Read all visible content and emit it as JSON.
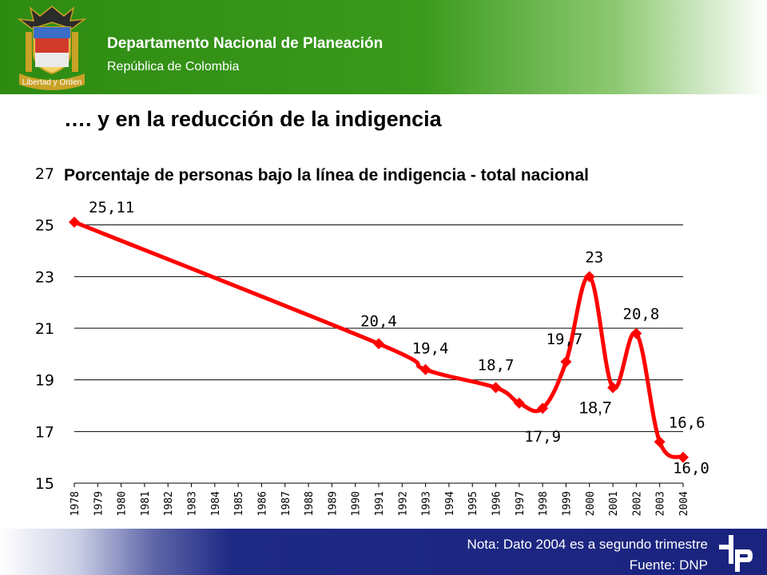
{
  "header": {
    "org_name": "Departamento Nacional de Planeación",
    "country": "República de Colombia",
    "crest_motto": "Libertad y Orden",
    "colors": {
      "green": "#2e8b12",
      "gold": "#c9a227"
    }
  },
  "slide_title": "…. y en la reducción de la indigencia",
  "chart_data": {
    "type": "line",
    "title": "Porcentaje de personas bajo la línea de indigencia - total nacional",
    "categories": [
      "1978",
      "1979",
      "1980",
      "1981",
      "1982",
      "1983",
      "1984",
      "1985",
      "1986",
      "1987",
      "1988",
      "1989",
      "1990",
      "1991",
      "1992",
      "1993",
      "1994",
      "1995",
      "1996",
      "1997",
      "1998",
      "1999",
      "2000",
      "2001",
      "2002",
      "2003",
      "2004"
    ],
    "points": [
      {
        "x": "1978",
        "y": 25.11,
        "label": "25,11"
      },
      {
        "x": "1991",
        "y": 20.4,
        "label": "20,4"
      },
      {
        "x": "1993",
        "y": 19.4,
        "label": "19,4"
      },
      {
        "x": "1996",
        "y": 18.7,
        "label": "18,7"
      },
      {
        "x": "1997",
        "y": 18.1,
        "label": ""
      },
      {
        "x": "1998",
        "y": 17.9,
        "label": "17,9"
      },
      {
        "x": "1999",
        "y": 19.7,
        "label": "19,7"
      },
      {
        "x": "2000",
        "y": 23.0,
        "label": "23"
      },
      {
        "x": "2001",
        "y": 18.7,
        "label": "18,7"
      },
      {
        "x": "2002",
        "y": 20.8,
        "label": "20,8"
      },
      {
        "x": "2003",
        "y": 16.6,
        "label": "16,6"
      },
      {
        "x": "2004",
        "y": 16.0,
        "label": "16,0"
      }
    ],
    "yticks": [
      "15",
      "17",
      "19",
      "21",
      "23",
      "25",
      "27"
    ],
    "ylim": [
      15,
      27
    ],
    "grid": true,
    "line_color": "#ff0000"
  },
  "footer": {
    "note": "Nota: Dato 2004 es a segundo trimestre",
    "source": "Fuente: DNP",
    "colors": {
      "navy": "#1a237e"
    }
  }
}
